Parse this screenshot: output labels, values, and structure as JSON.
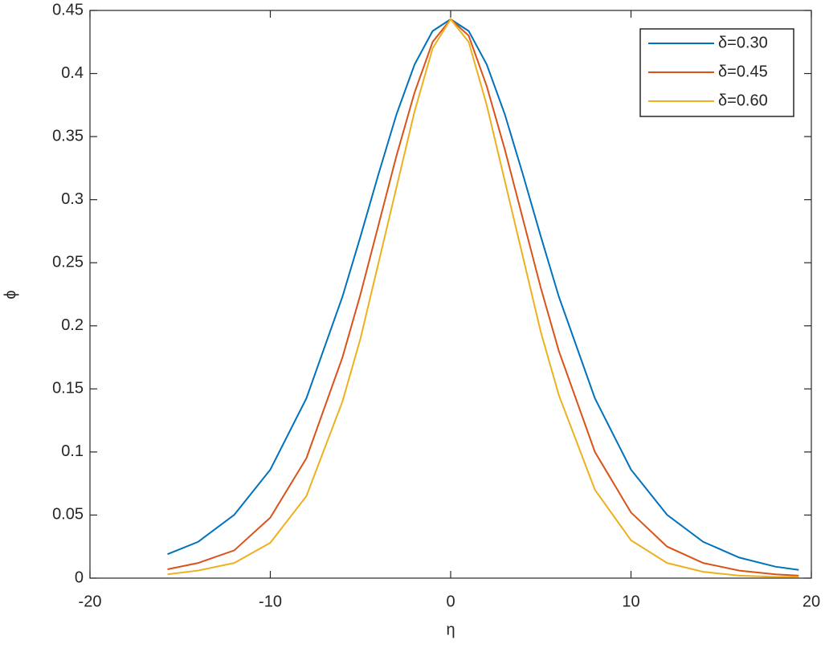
{
  "chart_data": {
    "type": "line",
    "xlabel": "η",
    "ylabel": "ϕ",
    "x": [
      -15.7,
      -14,
      -12,
      -10,
      -8,
      -6,
      -5,
      -4,
      -3,
      -2,
      -1,
      0,
      1,
      2,
      3,
      4,
      5,
      6,
      8,
      10,
      12,
      14,
      16,
      18,
      19.3
    ],
    "series": [
      {
        "name": "δ=0.30",
        "color": "#0072bd",
        "values": [
          0.019,
          0.0288,
          0.0502,
          0.086,
          0.1425,
          0.2231,
          0.2708,
          0.3203,
          0.3678,
          0.4072,
          0.4337,
          0.443,
          0.4337,
          0.4072,
          0.3678,
          0.3203,
          0.2708,
          0.2231,
          0.1425,
          0.086,
          0.0502,
          0.0288,
          0.0163,
          0.0091,
          0.0065
        ]
      },
      {
        "name": "δ=0.45",
        "color": "#d95319",
        "values": [
          0.007,
          0.012,
          0.022,
          0.048,
          0.095,
          0.175,
          0.225,
          0.28,
          0.335,
          0.385,
          0.425,
          0.443,
          0.43,
          0.39,
          0.34,
          0.285,
          0.23,
          0.18,
          0.1,
          0.052,
          0.025,
          0.012,
          0.006,
          0.003,
          0.002
        ]
      },
      {
        "name": "δ=0.60",
        "color": "#edb120",
        "values": [
          0.003,
          0.006,
          0.012,
          0.028,
          0.065,
          0.14,
          0.19,
          0.25,
          0.31,
          0.37,
          0.42,
          0.443,
          0.425,
          0.375,
          0.315,
          0.255,
          0.195,
          0.145,
          0.07,
          0.03,
          0.012,
          0.005,
          0.002,
          0.001,
          0.001
        ]
      }
    ],
    "xlim": [
      -20,
      20
    ],
    "xticks": [
      -20,
      -10,
      0,
      10,
      20
    ],
    "ylim": [
      0,
      0.45
    ],
    "yticks": [
      0,
      0.05,
      0.1,
      0.15,
      0.2,
      0.25,
      0.3,
      0.35,
      0.4,
      0.45
    ],
    "grid": false,
    "legend": "northeast"
  }
}
